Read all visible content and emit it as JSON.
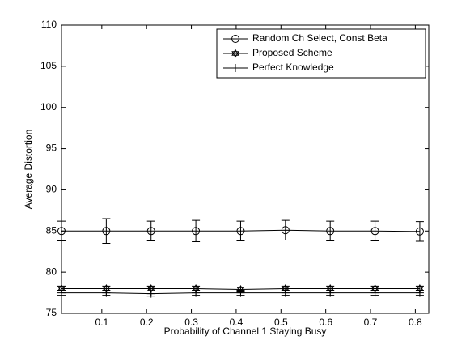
{
  "chart_data": {
    "type": "line",
    "xlabel": "Probability of Channel 1 Staying Busy",
    "ylabel": "Average Distortion",
    "x": [
      0.01,
      0.11,
      0.21,
      0.31,
      0.41,
      0.51,
      0.61,
      0.71,
      0.81
    ],
    "series": [
      {
        "name": "Random Ch Select, Const Beta",
        "color": "#000000",
        "marker": "circle",
        "values": [
          85,
          85,
          85,
          85,
          85,
          85.1,
          85,
          85,
          84.95
        ],
        "errors": [
          1.2,
          1.5,
          1.2,
          1.3,
          1.2,
          1.2,
          1.2,
          1.2,
          1.2
        ]
      },
      {
        "name": "Proposed Scheme",
        "color": "#000000",
        "marker": "hexagram",
        "values": [
          78,
          78,
          78,
          78,
          77.9,
          78,
          78,
          78,
          78
        ],
        "errors": [
          0.3,
          0.3,
          0.3,
          0.3,
          0.3,
          0.3,
          0.3,
          0.3,
          0.3
        ]
      },
      {
        "name": "Perfect Knowledge",
        "color": "#000000",
        "marker": "plus",
        "values": [
          77.5,
          77.5,
          77.4,
          77.5,
          77.5,
          77.5,
          77.5,
          77.5,
          77.5
        ],
        "errors": [
          0.3,
          0.3,
          0.3,
          0.3,
          0.3,
          0.3,
          0.3,
          0.3,
          0.3
        ]
      }
    ],
    "xlim": [
      0.01,
      0.83
    ],
    "xticks": [
      0.1,
      0.2,
      0.3,
      0.4,
      0.5,
      0.6,
      0.7,
      0.8
    ],
    "ylim": [
      75,
      110
    ],
    "yticks": [
      75,
      80,
      85,
      90,
      95,
      100,
      105,
      110
    ],
    "grid": false,
    "legend": "upper right"
  }
}
